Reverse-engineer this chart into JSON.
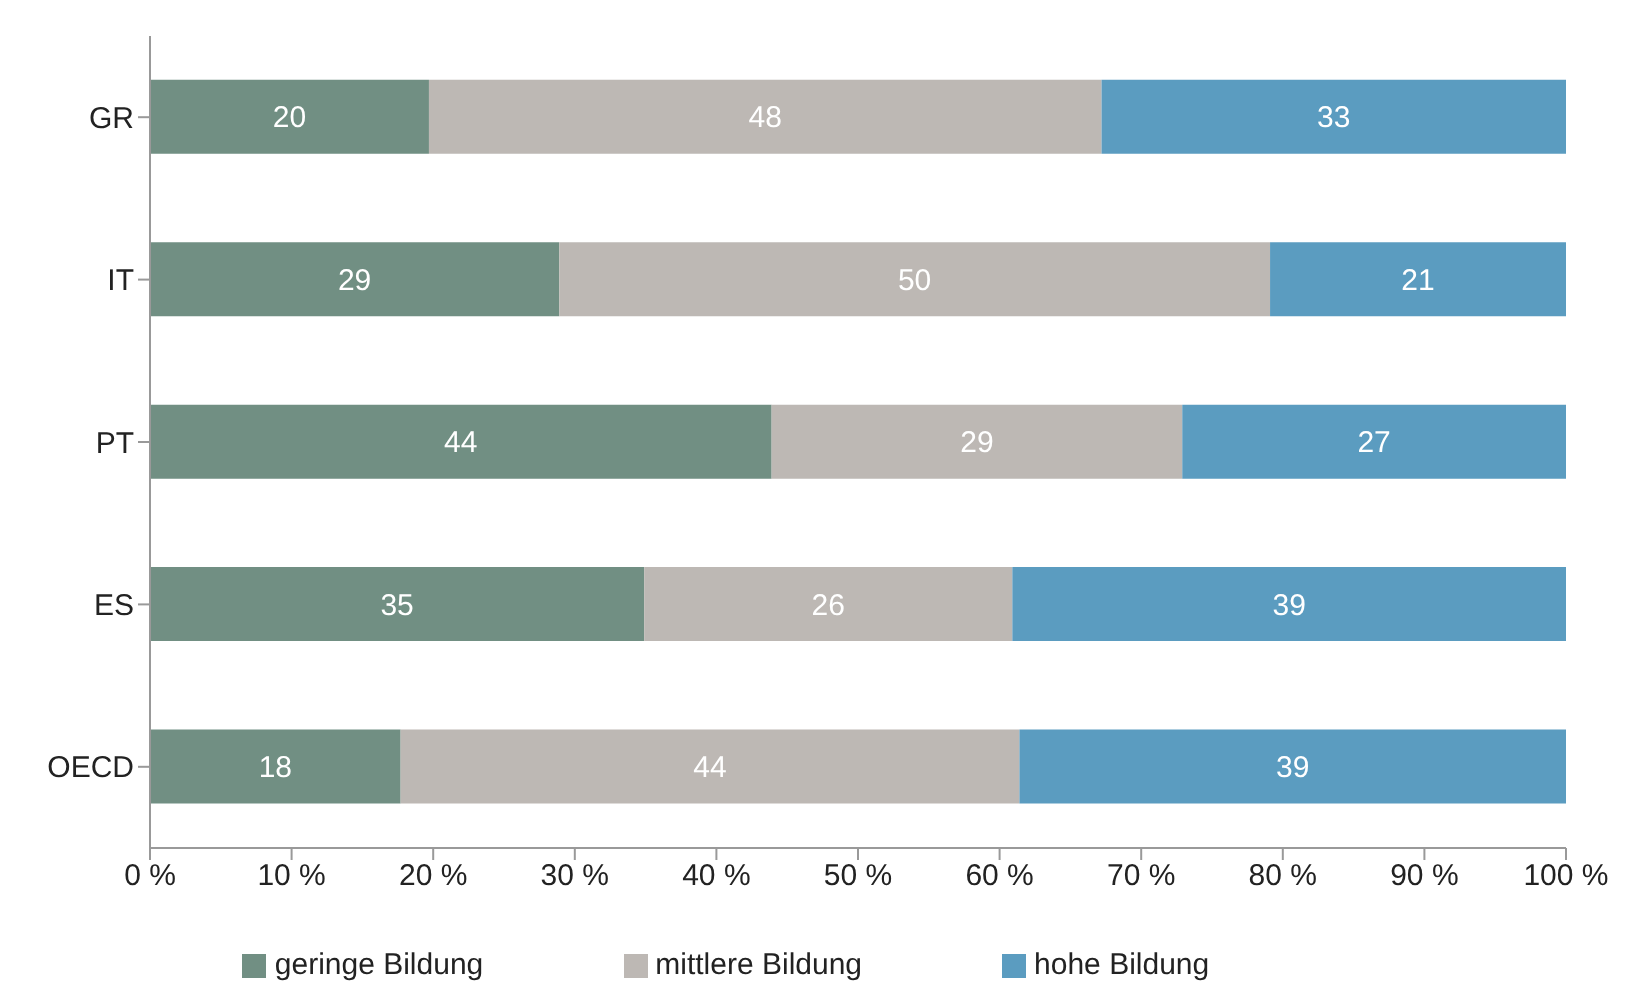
{
  "chart_data": {
    "type": "bar",
    "orientation": "horizontal",
    "stacked": true,
    "grid": false,
    "legend": "bottom",
    "categories": [
      "GR",
      "IT",
      "PT",
      "ES",
      "OECD"
    ],
    "series": [
      {
        "name": "geringe Bildung",
        "color": "#718f83",
        "values": [
          19.7,
          28.9,
          43.9,
          34.9,
          17.7
        ],
        "value_labels": [
          "20",
          "29",
          "44",
          "35",
          "18"
        ]
      },
      {
        "name": "mittlere Bildung",
        "color": "#bdb8b4",
        "values": [
          47.5,
          50.2,
          29.0,
          26.0,
          43.7
        ],
        "value_labels": [
          "48",
          "50",
          "29",
          "26",
          "44"
        ]
      },
      {
        "name": "hohe Bildung",
        "color": "#5b9cc0",
        "values": [
          32.8,
          20.9,
          27.1,
          39.1,
          38.6
        ],
        "value_labels": [
          "33",
          "21",
          "27",
          "39",
          "39"
        ]
      }
    ],
    "xlim": [
      0,
      100
    ],
    "xticks": [
      {
        "value": 0,
        "label": "0 %"
      },
      {
        "value": 10,
        "label": "10 %"
      },
      {
        "value": 20,
        "label": "20 %"
      },
      {
        "value": 30,
        "label": "30 %"
      },
      {
        "value": 40,
        "label": "40 %"
      },
      {
        "value": 50,
        "label": "50 %"
      },
      {
        "value": 60,
        "label": "60 %"
      },
      {
        "value": 70,
        "label": "70 %"
      },
      {
        "value": 80,
        "label": "80 %"
      },
      {
        "value": 90,
        "label": "90 %"
      },
      {
        "value": 100,
        "label": "100 %"
      }
    ]
  }
}
